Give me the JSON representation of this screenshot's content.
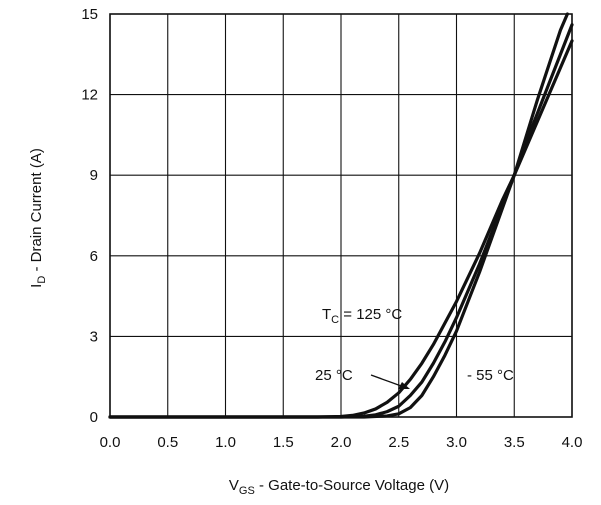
{
  "chart_data": {
    "type": "line",
    "title": "",
    "xlabel": {
      "main": "V",
      "sub": "GS",
      "rest": " - Gate-to-Source Voltage (V)"
    },
    "ylabel": {
      "main": "I",
      "sub": "D",
      "rest": " - Drain Current (A)"
    },
    "xlim": [
      0,
      4
    ],
    "ylim": [
      0,
      15
    ],
    "xticks": [
      0,
      0.5,
      1,
      1.5,
      2,
      2.5,
      3,
      3.5,
      4
    ],
    "xtick_labels": [
      "0.0",
      "0.5",
      "1.0",
      "1.5",
      "2.0",
      "2.5",
      "3.0",
      "3.5",
      "4.0"
    ],
    "yticks": [
      0,
      3,
      6,
      9,
      12,
      15
    ],
    "ytick_labels": [
      "0",
      "3",
      "6",
      "9",
      "12",
      "15"
    ],
    "grid": true,
    "legend": "none",
    "series": [
      {
        "name": "TC = 125 °C",
        "x": [
          0,
          1.8,
          2.0,
          2.1,
          2.2,
          2.3,
          2.4,
          2.5,
          2.6,
          2.7,
          2.8,
          2.9,
          3.0,
          3.1,
          3.2,
          3.3,
          3.4,
          3.5,
          3.6,
          3.7,
          3.8,
          3.9,
          4.0
        ],
        "y": [
          0,
          0,
          0.02,
          0.06,
          0.15,
          0.3,
          0.55,
          0.9,
          1.4,
          2.0,
          2.7,
          3.5,
          4.3,
          5.2,
          6.1,
          7.1,
          8.1,
          9.0,
          10.0,
          11.0,
          12.0,
          13.0,
          14.0
        ]
      },
      {
        "name": "25 °C",
        "x": [
          0,
          2.0,
          2.2,
          2.3,
          2.4,
          2.5,
          2.6,
          2.7,
          2.8,
          2.9,
          3.0,
          3.1,
          3.2,
          3.3,
          3.4,
          3.5,
          3.6,
          3.7,
          3.8,
          3.9,
          4.0
        ],
        "y": [
          0,
          0,
          0.03,
          0.08,
          0.2,
          0.4,
          0.8,
          1.3,
          2.0,
          2.8,
          3.7,
          4.7,
          5.7,
          6.8,
          7.9,
          9.0,
          10.2,
          11.3,
          12.4,
          13.5,
          14.6
        ]
      },
      {
        "name": "- 55 °C",
        "x": [
          0,
          2.2,
          2.4,
          2.5,
          2.6,
          2.7,
          2.8,
          2.9,
          3.0,
          3.1,
          3.2,
          3.3,
          3.4,
          3.5,
          3.6,
          3.7,
          3.8,
          3.9,
          3.96
        ],
        "y": [
          0,
          0,
          0.04,
          0.12,
          0.35,
          0.8,
          1.5,
          2.3,
          3.2,
          4.3,
          5.4,
          6.6,
          7.8,
          9.0,
          10.4,
          11.8,
          13.1,
          14.4,
          15.0
        ]
      }
    ],
    "annotations": [
      {
        "main": "T",
        "sub": "C",
        "rest": " = 125 °C"
      },
      {
        "main": "25 °C",
        "sub": "",
        "rest": ""
      },
      {
        "main": "- 55 °C",
        "sub": "",
        "rest": ""
      }
    ]
  }
}
